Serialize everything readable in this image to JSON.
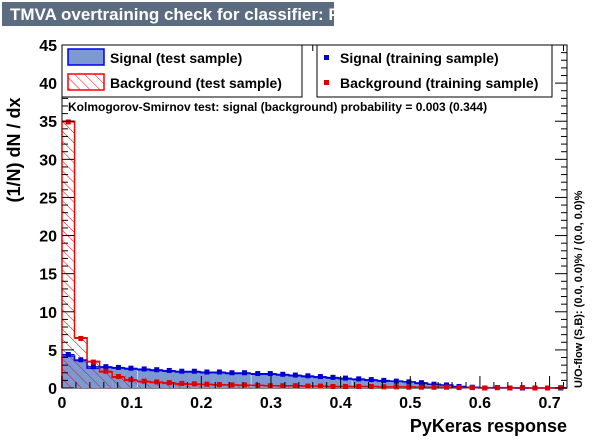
{
  "title": "TMVA overtraining check for classifier: PyKeras",
  "chart_data": {
    "type": "bar",
    "title": "TMVA overtraining check for classifier: PyKeras",
    "xlabel": "PyKeras response",
    "ylabel": "(1/N) dN / dx",
    "xlim": [
      0,
      0.725
    ],
    "ylim": [
      0,
      45
    ],
    "x_ticks": [
      "0",
      "0.1",
      "0.2",
      "0.3",
      "0.4",
      "0.5",
      "0.6",
      "0.7"
    ],
    "y_ticks": [
      "0",
      "5",
      "10",
      "15",
      "20",
      "25",
      "30",
      "35",
      "40",
      "45"
    ],
    "bin_width": 0.0181,
    "bin_centers": [
      0.009,
      0.027,
      0.045,
      0.063,
      0.081,
      0.099,
      0.118,
      0.136,
      0.154,
      0.172,
      0.19,
      0.208,
      0.226,
      0.244,
      0.262,
      0.281,
      0.299,
      0.317,
      0.335,
      0.353,
      0.371,
      0.389,
      0.407,
      0.426,
      0.444,
      0.462,
      0.48,
      0.498,
      0.516,
      0.534,
      0.552,
      0.57,
      0.589,
      0.607,
      0.625,
      0.643,
      0.661,
      0.679,
      0.697,
      0.716
    ],
    "series": [
      {
        "name": "Signal (test sample)",
        "style": "filled-histogram",
        "fill": "#7d99d1",
        "line": "#0000ee",
        "values": [
          4.2,
          3.6,
          2.6,
          2.7,
          2.6,
          2.5,
          2.4,
          2.3,
          2.2,
          2.1,
          2.1,
          2.0,
          2.0,
          1.9,
          1.9,
          1.8,
          1.8,
          1.7,
          1.6,
          1.5,
          1.4,
          1.3,
          1.2,
          1.1,
          1.0,
          0.9,
          0.9,
          0.8,
          0.6,
          0.5,
          0.4,
          0.2,
          0.1,
          0.0,
          0.0,
          0.0,
          0.0,
          0.0,
          0.0,
          0.0
        ]
      },
      {
        "name": "Background (test sample)",
        "style": "hatched-histogram",
        "line": "#ff0000",
        "values": [
          35.0,
          6.6,
          3.5,
          2.1,
          1.4,
          1.0,
          0.8,
          0.7,
          0.6,
          0.5,
          0.5,
          0.45,
          0.4,
          0.4,
          0.35,
          0.35,
          0.3,
          0.3,
          0.3,
          0.25,
          0.25,
          0.2,
          0.2,
          0.2,
          0.2,
          0.15,
          0.15,
          0.15,
          0.1,
          0.1,
          0.1,
          0.1,
          0.05,
          0.05,
          0.05,
          0.05,
          0.0,
          0.0,
          0.0,
          0.0
        ]
      },
      {
        "name": "Signal (training sample)",
        "style": "markers",
        "color": "#0000cc",
        "values": [
          4.4,
          3.7,
          2.8,
          2.8,
          2.7,
          2.6,
          2.5,
          2.4,
          2.3,
          2.2,
          2.2,
          2.1,
          2.1,
          2.0,
          2.0,
          1.9,
          1.9,
          1.8,
          1.7,
          1.6,
          1.5,
          1.4,
          1.3,
          1.2,
          1.1,
          1.0,
          0.9,
          0.8,
          0.7,
          0.5,
          0.4,
          0.2,
          0.1,
          0.0,
          0.05,
          0.0,
          0.0,
          0.0,
          0.0,
          0.0
        ]
      },
      {
        "name": "Background (training sample)",
        "style": "markers",
        "color": "#dd0000",
        "values": [
          34.9,
          6.5,
          3.4,
          2.2,
          1.5,
          1.1,
          0.9,
          0.8,
          0.7,
          0.6,
          0.55,
          0.5,
          0.45,
          0.4,
          0.4,
          0.35,
          0.3,
          0.3,
          0.3,
          0.25,
          0.25,
          0.2,
          0.2,
          0.2,
          0.2,
          0.15,
          0.15,
          0.1,
          0.1,
          0.1,
          0.1,
          0.05,
          0.05,
          0.0,
          0.05,
          0.0,
          0.05,
          0.0,
          0.0,
          0.05
        ]
      }
    ],
    "ks_text": "Kolmogorov-Smirnov test: signal (background) probability = 0.003 (0.344)",
    "overflow_text": "U/O-flow (S,B): (0.0, 0.0)% / (0.0, 0.0)%",
    "legend_placement": "top"
  }
}
